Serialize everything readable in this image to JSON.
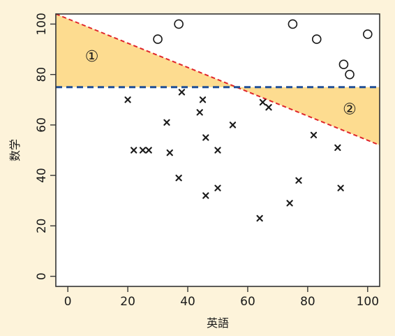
{
  "chart_data": {
    "type": "scatter",
    "xlabel": "英語",
    "ylabel": "数学",
    "xlim": [
      -4,
      104
    ],
    "ylim": [
      -4,
      104
    ],
    "xticks": [
      0,
      20,
      40,
      60,
      80,
      100
    ],
    "yticks": [
      0,
      20,
      40,
      60,
      80,
      100
    ],
    "grid": false,
    "series": [
      {
        "marker": "circle",
        "points": [
          {
            "x": 30,
            "y": 94
          },
          {
            "x": 37,
            "y": 100
          },
          {
            "x": 75,
            "y": 100
          },
          {
            "x": 83,
            "y": 94
          },
          {
            "x": 92,
            "y": 84
          },
          {
            "x": 94,
            "y": 80
          },
          {
            "x": 100,
            "y": 96
          }
        ]
      },
      {
        "marker": "cross",
        "points": [
          {
            "x": 20,
            "y": 70
          },
          {
            "x": 22,
            "y": 50
          },
          {
            "x": 25,
            "y": 50
          },
          {
            "x": 27,
            "y": 50
          },
          {
            "x": 33,
            "y": 61
          },
          {
            "x": 34,
            "y": 49
          },
          {
            "x": 37,
            "y": 39
          },
          {
            "x": 38,
            "y": 73
          },
          {
            "x": 44,
            "y": 65
          },
          {
            "x": 45,
            "y": 70
          },
          {
            "x": 46,
            "y": 55
          },
          {
            "x": 46,
            "y": 32
          },
          {
            "x": 50,
            "y": 50
          },
          {
            "x": 50,
            "y": 35
          },
          {
            "x": 55,
            "y": 60
          },
          {
            "x": 64,
            "y": 23
          },
          {
            "x": 65,
            "y": 69
          },
          {
            "x": 67,
            "y": 67
          },
          {
            "x": 74,
            "y": 29
          },
          {
            "x": 77,
            "y": 38
          },
          {
            "x": 82,
            "y": 56
          },
          {
            "x": 90,
            "y": 51
          },
          {
            "x": 91,
            "y": 35
          }
        ]
      }
    ],
    "lines": [
      {
        "style": "dashed",
        "color": "#e0262b",
        "from": {
          "x": -4,
          "y": 104
        },
        "to": {
          "x": 104,
          "y": 52
        }
      },
      {
        "style": "dashed",
        "color": "#1f4e96",
        "from": {
          "x": -4,
          "y": 75
        },
        "to": {
          "x": 104,
          "y": 75
        }
      }
    ],
    "regions": [
      {
        "label": "①",
        "label_at": {
          "x": 8,
          "y": 87
        },
        "color": "#fddc90",
        "polygon": [
          {
            "x": -4,
            "y": 104
          },
          {
            "x": -4,
            "y": 75
          },
          {
            "x": 56.2,
            "y": 75
          }
        ]
      },
      {
        "label": "②",
        "label_at": {
          "x": 94,
          "y": 66
        },
        "color": "#fddc90",
        "polygon": [
          {
            "x": 56.2,
            "y": 75
          },
          {
            "x": 104,
            "y": 75
          },
          {
            "x": 104,
            "y": 52
          }
        ]
      }
    ]
  }
}
